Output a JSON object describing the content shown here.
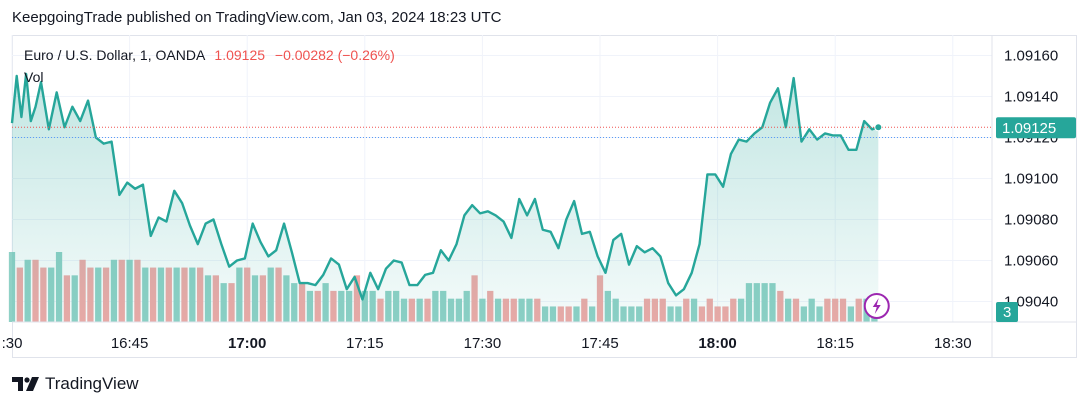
{
  "header": {
    "published": "KeepgoingTrade published on TradingView.com, Jan 03, 2024 18:23 UTC"
  },
  "legend": {
    "symbol": "Euro / U.S. Dollar, 1, OANDA",
    "last": "1.09125",
    "change": "−0.00282 (−0.26%)",
    "volume_label": "Vol"
  },
  "footer": {
    "brand": "TradingView"
  },
  "colors": {
    "line": "#26a69a",
    "up_volume": "#8fd1c6",
    "down_volume": "#f0a9a7",
    "last_price_badge": "#26a69a",
    "down_text": "#ef5350",
    "grid": "#f0f3fa",
    "reference_line": "#5b9cf6",
    "alert_icon": "#9c27b0"
  },
  "icons": {
    "alert": "lightning-icon",
    "logo": "tradingview-logo-icon"
  },
  "chart_data": {
    "type": "line",
    "title": "Euro / U.S. Dollar, 1, OANDA",
    "x_ticks": [
      {
        "label": ":30",
        "bold": false,
        "min": -10
      },
      {
        "label": "16:45",
        "bold": false,
        "min": 5
      },
      {
        "label": "17:00",
        "bold": true,
        "min": 20
      },
      {
        "label": "17:15",
        "bold": false,
        "min": 35
      },
      {
        "label": "17:30",
        "bold": false,
        "min": 50
      },
      {
        "label": "17:45",
        "bold": false,
        "min": 65
      },
      {
        "label": "18:00",
        "bold": true,
        "min": 80
      },
      {
        "label": "18:15",
        "bold": false,
        "min": 95
      },
      {
        "label": "18:30",
        "bold": false,
        "min": 110
      }
    ],
    "y_ticks": [
      "1.09160",
      "1.09140",
      "1.09120",
      "1.09100",
      "1.09080",
      "1.09060",
      "1.09040"
    ],
    "ylim": [
      1.0903,
      1.0917
    ],
    "x_range_min": [
      -10,
      115
    ],
    "last_price_label": "1.09125",
    "last_volume_label": "3",
    "price": [
      {
        "t": -10,
        "v": 1.09127
      },
      {
        "t": -9.4,
        "v": 1.0915
      },
      {
        "t": -8.8,
        "v": 1.0913
      },
      {
        "t": -8.2,
        "v": 1.09151
      },
      {
        "t": -7.6,
        "v": 1.09128
      },
      {
        "t": -7.0,
        "v": 1.09135
      },
      {
        "t": -6.3,
        "v": 1.09147
      },
      {
        "t": -5.3,
        "v": 1.09124
      },
      {
        "t": -4.3,
        "v": 1.09142
      },
      {
        "t": -3.3,
        "v": 1.09125
      },
      {
        "t": -2.3,
        "v": 1.09135
      },
      {
        "t": -1.3,
        "v": 1.09128
      },
      {
        "t": -0.3,
        "v": 1.09138
      },
      {
        "t": 0.7,
        "v": 1.0912
      },
      {
        "t": 1.7,
        "v": 1.09117
      },
      {
        "t": 2.7,
        "v": 1.09118
      },
      {
        "t": 3.7,
        "v": 1.09092
      },
      {
        "t": 4.7,
        "v": 1.09098
      },
      {
        "t": 5.7,
        "v": 1.09095
      },
      {
        "t": 6.7,
        "v": 1.09097
      },
      {
        "t": 7.7,
        "v": 1.09072
      },
      {
        "t": 8.7,
        "v": 1.09081
      },
      {
        "t": 9.7,
        "v": 1.09079
      },
      {
        "t": 10.7,
        "v": 1.09094
      },
      {
        "t": 11.7,
        "v": 1.09088
      },
      {
        "t": 12.7,
        "v": 1.09077
      },
      {
        "t": 13.7,
        "v": 1.09068
      },
      {
        "t": 14.7,
        "v": 1.09078
      },
      {
        "t": 15.7,
        "v": 1.0908
      },
      {
        "t": 16.7,
        "v": 1.09068
      },
      {
        "t": 17.7,
        "v": 1.09057
      },
      {
        "t": 18.7,
        "v": 1.0906
      },
      {
        "t": 19.7,
        "v": 1.09061
      },
      {
        "t": 20.7,
        "v": 1.09078
      },
      {
        "t": 21.7,
        "v": 1.09069
      },
      {
        "t": 22.7,
        "v": 1.09062
      },
      {
        "t": 23.7,
        "v": 1.09065
      },
      {
        "t": 24.7,
        "v": 1.09078
      },
      {
        "t": 25.7,
        "v": 1.09064
      },
      {
        "t": 26.7,
        "v": 1.09049
      },
      {
        "t": 27.7,
        "v": 1.09049
      },
      {
        "t": 28.7,
        "v": 1.09048
      },
      {
        "t": 29.7,
        "v": 1.09053
      },
      {
        "t": 30.7,
        "v": 1.09061
      },
      {
        "t": 31.7,
        "v": 1.09058
      },
      {
        "t": 32.7,
        "v": 1.09046
      },
      {
        "t": 33.7,
        "v": 1.09052
      },
      {
        "t": 34.7,
        "v": 1.09041
      },
      {
        "t": 35.7,
        "v": 1.09054
      },
      {
        "t": 36.7,
        "v": 1.09046
      },
      {
        "t": 37.7,
        "v": 1.09056
      },
      {
        "t": 38.7,
        "v": 1.0906
      },
      {
        "t": 39.7,
        "v": 1.09059
      },
      {
        "t": 40.7,
        "v": 1.09048
      },
      {
        "t": 41.7,
        "v": 1.09048
      },
      {
        "t": 42.7,
        "v": 1.09053
      },
      {
        "t": 43.7,
        "v": 1.09054
      },
      {
        "t": 44.7,
        "v": 1.09065
      },
      {
        "t": 45.7,
        "v": 1.0906
      },
      {
        "t": 46.7,
        "v": 1.09068
      },
      {
        "t": 47.7,
        "v": 1.09082
      },
      {
        "t": 48.7,
        "v": 1.09087
      },
      {
        "t": 49.7,
        "v": 1.09083
      },
      {
        "t": 50.7,
        "v": 1.09084
      },
      {
        "t": 51.7,
        "v": 1.09082
      },
      {
        "t": 52.7,
        "v": 1.09079
      },
      {
        "t": 53.7,
        "v": 1.09071
      },
      {
        "t": 54.7,
        "v": 1.0909
      },
      {
        "t": 55.7,
        "v": 1.09082
      },
      {
        "t": 56.7,
        "v": 1.0909
      },
      {
        "t": 57.7,
        "v": 1.09075
      },
      {
        "t": 58.7,
        "v": 1.09074
      },
      {
        "t": 59.7,
        "v": 1.09066
      },
      {
        "t": 60.7,
        "v": 1.0908
      },
      {
        "t": 61.7,
        "v": 1.09089
      },
      {
        "t": 62.7,
        "v": 1.09073
      },
      {
        "t": 63.7,
        "v": 1.09074
      },
      {
        "t": 64.7,
        "v": 1.09062
      },
      {
        "t": 65.7,
        "v": 1.09054
      },
      {
        "t": 66.7,
        "v": 1.0907
      },
      {
        "t": 67.7,
        "v": 1.09073
      },
      {
        "t": 68.7,
        "v": 1.09058
      },
      {
        "t": 69.7,
        "v": 1.09067
      },
      {
        "t": 70.7,
        "v": 1.09064
      },
      {
        "t": 71.7,
        "v": 1.09066
      },
      {
        "t": 72.7,
        "v": 1.09062
      },
      {
        "t": 73.7,
        "v": 1.09049
      },
      {
        "t": 74.7,
        "v": 1.09043
      },
      {
        "t": 75.7,
        "v": 1.09046
      },
      {
        "t": 76.7,
        "v": 1.09054
      },
      {
        "t": 77.7,
        "v": 1.09068
      },
      {
        "t": 78.7,
        "v": 1.09102
      },
      {
        "t": 79.7,
        "v": 1.09102
      },
      {
        "t": 80.7,
        "v": 1.09096
      },
      {
        "t": 81.7,
        "v": 1.09112
      },
      {
        "t": 82.7,
        "v": 1.09119
      },
      {
        "t": 83.7,
        "v": 1.09118
      },
      {
        "t": 84.7,
        "v": 1.09122
      },
      {
        "t": 85.7,
        "v": 1.09125
      },
      {
        "t": 86.7,
        "v": 1.09137
      },
      {
        "t": 87.7,
        "v": 1.09144
      },
      {
        "t": 88.7,
        "v": 1.09125
      },
      {
        "t": 89.7,
        "v": 1.09149
      },
      {
        "t": 90.7,
        "v": 1.09118
      },
      {
        "t": 91.7,
        "v": 1.09124
      },
      {
        "t": 92.7,
        "v": 1.09119
      },
      {
        "t": 93.7,
        "v": 1.09122
      },
      {
        "t": 94.7,
        "v": 1.09121
      },
      {
        "t": 95.7,
        "v": 1.09121
      },
      {
        "t": 96.7,
        "v": 1.09114
      },
      {
        "t": 97.7,
        "v": 1.09114
      },
      {
        "t": 98.7,
        "v": 1.09128
      },
      {
        "t": 99.7,
        "v": 1.09124
      },
      {
        "t": 100.5,
        "v": 1.09125
      }
    ],
    "volume": [
      {
        "t": -10,
        "v": 9,
        "dir": "up"
      },
      {
        "t": -9,
        "v": 7,
        "dir": "down"
      },
      {
        "t": -8,
        "v": 8,
        "dir": "up"
      },
      {
        "t": -7,
        "v": 8,
        "dir": "down"
      },
      {
        "t": -6,
        "v": 7,
        "dir": "down"
      },
      {
        "t": -5,
        "v": 7,
        "dir": "up"
      },
      {
        "t": -4,
        "v": 9,
        "dir": "up"
      },
      {
        "t": -3,
        "v": 6,
        "dir": "down"
      },
      {
        "t": -2,
        "v": 6,
        "dir": "up"
      },
      {
        "t": -1,
        "v": 8,
        "dir": "down"
      },
      {
        "t": 0,
        "v": 7,
        "dir": "down"
      },
      {
        "t": 1,
        "v": 7,
        "dir": "up"
      },
      {
        "t": 2,
        "v": 7,
        "dir": "down"
      },
      {
        "t": 3,
        "v": 8,
        "dir": "up"
      },
      {
        "t": 4,
        "v": 8,
        "dir": "down"
      },
      {
        "t": 5,
        "v": 8,
        "dir": "up"
      },
      {
        "t": 6,
        "v": 8,
        "dir": "down"
      },
      {
        "t": 7,
        "v": 7,
        "dir": "up"
      },
      {
        "t": 8,
        "v": 7,
        "dir": "down"
      },
      {
        "t": 9,
        "v": 7,
        "dir": "up"
      },
      {
        "t": 10,
        "v": 7,
        "dir": "down"
      },
      {
        "t": 11,
        "v": 7,
        "dir": "up"
      },
      {
        "t": 12,
        "v": 7,
        "dir": "down"
      },
      {
        "t": 13,
        "v": 7,
        "dir": "up"
      },
      {
        "t": 14,
        "v": 7,
        "dir": "down"
      },
      {
        "t": 15,
        "v": 6,
        "dir": "up"
      },
      {
        "t": 16,
        "v": 6,
        "dir": "down"
      },
      {
        "t": 17,
        "v": 5,
        "dir": "up"
      },
      {
        "t": 18,
        "v": 5,
        "dir": "down"
      },
      {
        "t": 19,
        "v": 7,
        "dir": "up"
      },
      {
        "t": 20,
        "v": 7,
        "dir": "down"
      },
      {
        "t": 21,
        "v": 6,
        "dir": "up"
      },
      {
        "t": 22,
        "v": 6,
        "dir": "down"
      },
      {
        "t": 23,
        "v": 7,
        "dir": "up"
      },
      {
        "t": 24,
        "v": 7,
        "dir": "down"
      },
      {
        "t": 25,
        "v": 6,
        "dir": "up"
      },
      {
        "t": 26,
        "v": 5,
        "dir": "up"
      },
      {
        "t": 27,
        "v": 5,
        "dir": "down"
      },
      {
        "t": 28,
        "v": 4,
        "dir": "up"
      },
      {
        "t": 29,
        "v": 4,
        "dir": "down"
      },
      {
        "t": 30,
        "v": 5,
        "dir": "up"
      },
      {
        "t": 31,
        "v": 4,
        "dir": "down"
      },
      {
        "t": 32,
        "v": 4,
        "dir": "up"
      },
      {
        "t": 33,
        "v": 4,
        "dir": "up"
      },
      {
        "t": 34,
        "v": 6,
        "dir": "down"
      },
      {
        "t": 35,
        "v": 4,
        "dir": "up"
      },
      {
        "t": 36,
        "v": 4,
        "dir": "up"
      },
      {
        "t": 37,
        "v": 3,
        "dir": "down"
      },
      {
        "t": 38,
        "v": 4,
        "dir": "up"
      },
      {
        "t": 39,
        "v": 4,
        "dir": "up"
      },
      {
        "t": 40,
        "v": 3,
        "dir": "up"
      },
      {
        "t": 41,
        "v": 3,
        "dir": "down"
      },
      {
        "t": 42,
        "v": 3,
        "dir": "up"
      },
      {
        "t": 43,
        "v": 3,
        "dir": "down"
      },
      {
        "t": 44,
        "v": 4,
        "dir": "up"
      },
      {
        "t": 45,
        "v": 4,
        "dir": "up"
      },
      {
        "t": 46,
        "v": 3,
        "dir": "up"
      },
      {
        "t": 47,
        "v": 3,
        "dir": "up"
      },
      {
        "t": 48,
        "v": 4,
        "dir": "up"
      },
      {
        "t": 49,
        "v": 6,
        "dir": "down"
      },
      {
        "t": 50,
        "v": 3,
        "dir": "up"
      },
      {
        "t": 51,
        "v": 4,
        "dir": "down"
      },
      {
        "t": 52,
        "v": 3,
        "dir": "up"
      },
      {
        "t": 53,
        "v": 3,
        "dir": "down"
      },
      {
        "t": 54,
        "v": 3,
        "dir": "down"
      },
      {
        "t": 55,
        "v": 3,
        "dir": "up"
      },
      {
        "t": 56,
        "v": 3,
        "dir": "up"
      },
      {
        "t": 57,
        "v": 3,
        "dir": "down"
      },
      {
        "t": 58,
        "v": 2,
        "dir": "up"
      },
      {
        "t": 59,
        "v": 2,
        "dir": "up"
      },
      {
        "t": 60,
        "v": 2,
        "dir": "down"
      },
      {
        "t": 61,
        "v": 2,
        "dir": "down"
      },
      {
        "t": 62,
        "v": 2,
        "dir": "up"
      },
      {
        "t": 63,
        "v": 3,
        "dir": "down"
      },
      {
        "t": 64,
        "v": 2,
        "dir": "up"
      },
      {
        "t": 65,
        "v": 6,
        "dir": "down"
      },
      {
        "t": 66,
        "v": 4,
        "dir": "up"
      },
      {
        "t": 67,
        "v": 3,
        "dir": "up"
      },
      {
        "t": 68,
        "v": 2,
        "dir": "up"
      },
      {
        "t": 69,
        "v": 2,
        "dir": "up"
      },
      {
        "t": 70,
        "v": 2,
        "dir": "up"
      },
      {
        "t": 71,
        "v": 3,
        "dir": "down"
      },
      {
        "t": 72,
        "v": 3,
        "dir": "down"
      },
      {
        "t": 73,
        "v": 3,
        "dir": "down"
      },
      {
        "t": 74,
        "v": 2,
        "dir": "up"
      },
      {
        "t": 75,
        "v": 2,
        "dir": "up"
      },
      {
        "t": 76,
        "v": 3,
        "dir": "down"
      },
      {
        "t": 77,
        "v": 3,
        "dir": "up"
      },
      {
        "t": 78,
        "v": 2,
        "dir": "down"
      },
      {
        "t": 79,
        "v": 3,
        "dir": "down"
      },
      {
        "t": 80,
        "v": 2,
        "dir": "down"
      },
      {
        "t": 81,
        "v": 2,
        "dir": "down"
      },
      {
        "t": 82,
        "v": 3,
        "dir": "down"
      },
      {
        "t": 83,
        "v": 3,
        "dir": "up"
      },
      {
        "t": 84,
        "v": 5,
        "dir": "up"
      },
      {
        "t": 85,
        "v": 5,
        "dir": "up"
      },
      {
        "t": 86,
        "v": 5,
        "dir": "up"
      },
      {
        "t": 87,
        "v": 5,
        "dir": "up"
      },
      {
        "t": 88,
        "v": 4,
        "dir": "down"
      },
      {
        "t": 89,
        "v": 3,
        "dir": "up"
      },
      {
        "t": 90,
        "v": 3,
        "dir": "down"
      },
      {
        "t": 91,
        "v": 2,
        "dir": "up"
      },
      {
        "t": 92,
        "v": 3,
        "dir": "up"
      },
      {
        "t": 93,
        "v": 2,
        "dir": "up"
      },
      {
        "t": 94,
        "v": 3,
        "dir": "down"
      },
      {
        "t": 95,
        "v": 3,
        "dir": "down"
      },
      {
        "t": 96,
        "v": 3,
        "dir": "down"
      },
      {
        "t": 97,
        "v": 2,
        "dir": "up"
      },
      {
        "t": 98,
        "v": 3,
        "dir": "down"
      },
      {
        "t": 99,
        "v": 3,
        "dir": "up"
      },
      {
        "t": 100,
        "v": 3,
        "dir": "up"
      }
    ]
  }
}
